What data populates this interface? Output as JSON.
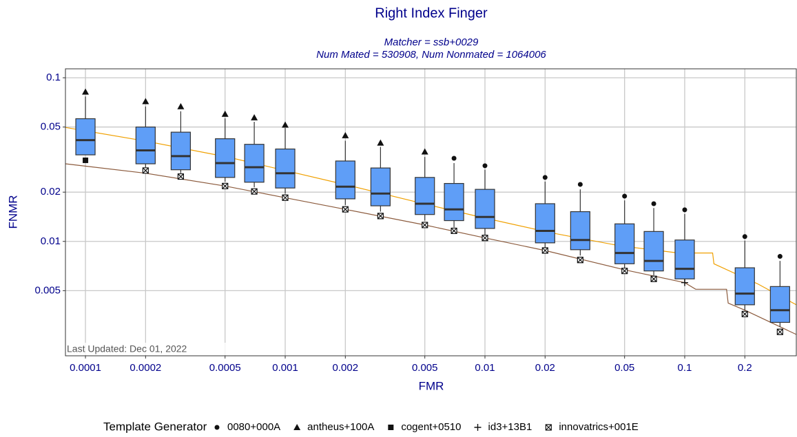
{
  "chart_data": {
    "type": "box",
    "title": "Right Index Finger",
    "subtitle": [
      "Matcher = ssb+0029",
      "Num Mated = 530908, Num Nonmated = 1064006"
    ],
    "xlabel": "FMR",
    "ylabel": "FNMR",
    "annotation": "Last Updated: Dec 01, 2022",
    "x_scale": "log",
    "y_scale": "log",
    "grid": true,
    "xlim": [
      7.94e-05,
      0.362
    ],
    "ylim": [
      0.002,
      0.1134
    ],
    "xticks": [
      0.0001,
      0.0002,
      0.0005,
      0.001,
      0.002,
      0.005,
      0.01,
      0.02,
      0.05,
      0.1,
      0.2
    ],
    "yticks": [
      0.1,
      0.05,
      0.02,
      0.01,
      0.005
    ],
    "box_color": "#5f9ef7",
    "boxes": {
      "x": [
        0.0001,
        0.0002,
        0.0003,
        0.0005,
        0.0007,
        0.001,
        0.002,
        0.003,
        0.005,
        0.007,
        0.01,
        0.02,
        0.03,
        0.05,
        0.07,
        0.1,
        0.2,
        0.3
      ],
      "whishi": [
        0.0768,
        0.0667,
        0.0624,
        0.0565,
        0.0538,
        0.0493,
        0.0412,
        0.0378,
        0.0328,
        0.0301,
        0.0274,
        0.0232,
        0.0208,
        0.0178,
        0.016,
        0.0147,
        0.0101,
        0.0076
      ],
      "q3": [
        0.0562,
        0.05,
        0.0465,
        0.0424,
        0.0392,
        0.0367,
        0.031,
        0.0281,
        0.0246,
        0.0226,
        0.0208,
        0.017,
        0.0152,
        0.0128,
        0.0115,
        0.0102,
        0.0069,
        0.0053
      ],
      "med": [
        0.0416,
        0.036,
        0.0332,
        0.0301,
        0.0284,
        0.0261,
        0.0216,
        0.0196,
        0.017,
        0.0157,
        0.0141,
        0.0116,
        0.0102,
        0.0085,
        0.0076,
        0.0068,
        0.0048,
        0.0038
      ],
      "q1": [
        0.0338,
        0.0298,
        0.0274,
        0.0246,
        0.023,
        0.0212,
        0.0182,
        0.0165,
        0.0146,
        0.0134,
        0.012,
        0.0098,
        0.0089,
        0.0073,
        0.0066,
        0.0059,
        0.0041,
        0.0032
      ],
      "whislo": [
        0.0338,
        0.0284,
        0.0261,
        0.0232,
        0.0214,
        0.0196,
        0.0167,
        0.0152,
        0.0134,
        0.0122,
        0.011,
        0.0092,
        0.0082,
        0.0069,
        0.0062,
        0.0056,
        0.0038,
        0.003
      ]
    },
    "lines": [
      {
        "color": "#f0a000",
        "x": [
          7.94e-05,
          0.000198,
          0.000513,
          0.00198,
          0.00513,
          0.00969,
          0.0214,
          0.0474,
          0.0931,
          0.138,
          0.14,
          0.232,
          0.362
        ],
        "values": [
          0.0497,
          0.0411,
          0.0328,
          0.0223,
          0.0168,
          0.014,
          0.0113,
          0.0094,
          0.0085,
          0.0085,
          0.0073,
          0.0055,
          0.0041
        ]
      },
      {
        "color": "#8b5a3c",
        "x": [
          7.94e-05,
          0.0002,
          0.0005,
          0.001,
          0.002,
          0.005,
          0.01,
          0.02,
          0.05,
          0.1,
          0.1135,
          0.162,
          0.165,
          0.2,
          0.362
        ],
        "values": [
          0.0298,
          0.0261,
          0.0218,
          0.0185,
          0.0157,
          0.0126,
          0.0105,
          0.0088,
          0.0067,
          0.0056,
          0.0051,
          0.0051,
          0.0042,
          0.0038,
          0.0027
        ]
      }
    ],
    "legend_title": "Template Generator",
    "series": [
      {
        "name": "0080+000A",
        "marker": "circle",
        "x": [
          0.007,
          0.01,
          0.02,
          0.03,
          0.05,
          0.07,
          0.1,
          0.2,
          0.3
        ],
        "values": [
          0.0322,
          0.029,
          0.0246,
          0.0223,
          0.0189,
          0.017,
          0.0156,
          0.0107,
          0.0081
        ]
      },
      {
        "name": "antheus+100A",
        "marker": "triangle",
        "x": [
          0.0001,
          0.0002,
          0.0003,
          0.0005,
          0.0007,
          0.001,
          0.002,
          0.003,
          0.005
        ],
        "values": [
          0.082,
          0.0717,
          0.0667,
          0.06,
          0.0571,
          0.0515,
          0.0444,
          0.04,
          0.0353
        ]
      },
      {
        "name": "cogent+0510",
        "marker": "square",
        "x": [
          0.0001
        ],
        "values": [
          0.0313
        ]
      },
      {
        "name": "id3+13B1",
        "marker": "plus",
        "x": [
          0.1
        ],
        "values": [
          0.0056
        ]
      },
      {
        "name": "innovatrics+001E",
        "marker": "xsquare",
        "x": [
          0.0002,
          0.0003,
          0.0005,
          0.0007,
          0.001,
          0.002,
          0.003,
          0.005,
          0.007,
          0.01,
          0.02,
          0.03,
          0.05,
          0.07,
          0.2,
          0.3
        ],
        "values": [
          0.0271,
          0.0249,
          0.0218,
          0.0202,
          0.0185,
          0.0157,
          0.0143,
          0.0126,
          0.0116,
          0.0105,
          0.0088,
          0.0077,
          0.0066,
          0.0059,
          0.0036,
          0.0028
        ]
      }
    ]
  }
}
